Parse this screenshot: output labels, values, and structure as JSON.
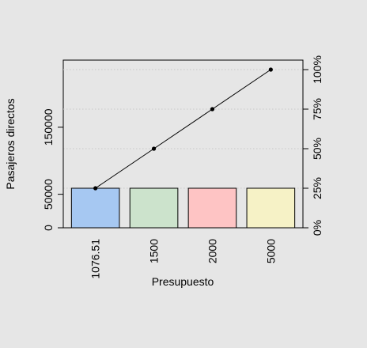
{
  "chart_data": {
    "type": "bar",
    "subtype": "pareto",
    "title": "",
    "xlabel": "Presupuesto",
    "ylabel": "Pasajeros directos",
    "categories": [
      "1076.51",
      "1500",
      "2000",
      "5000"
    ],
    "values": [
      59000,
      59000,
      59000,
      59000
    ],
    "bar_colors": [
      "#a6c8f2",
      "#cce3cc",
      "#fec4c4",
      "#f6f2c6"
    ],
    "ylim": [
      0,
      236000
    ],
    "yticks": [
      0,
      50000,
      150000
    ],
    "ytick_labels": [
      "0",
      "50000",
      "150000"
    ],
    "cumulative_series": {
      "values": [
        25,
        50,
        75,
        100
      ],
      "range": [
        0,
        100
      ]
    },
    "y2ticks": [
      0,
      25,
      50,
      75,
      100
    ],
    "y2tick_labels": [
      "0%",
      "25%",
      "50%",
      "75%",
      "100%"
    ],
    "grid": "dotted horizontal at cumulative percent levels",
    "colors": {
      "background": "#e6e6e6",
      "line": "#000000",
      "grid": "#c8c8c8"
    }
  }
}
